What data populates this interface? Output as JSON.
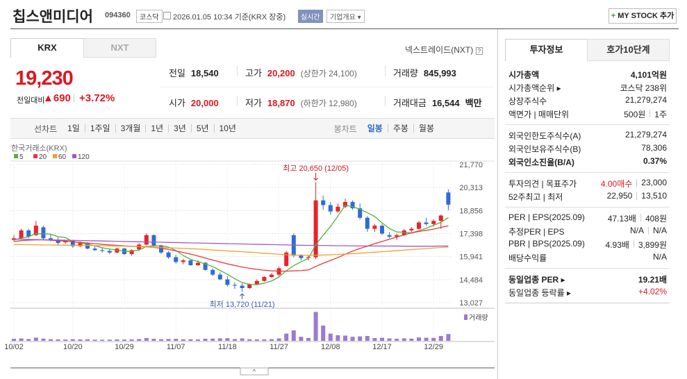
{
  "header": {
    "title": "칩스앤미디어",
    "code": "094360",
    "market": "코스닥",
    "datetime": "2026.01.05 10:34 기준(KRX 장중)",
    "realtime": "실시간",
    "overview": "기업개요",
    "mystock": "MY STOCK 추가"
  },
  "price": {
    "tabs": [
      "KRX",
      "NXT"
    ],
    "nxt_link": "넥스트레이드(NXT)",
    "current": "19,230",
    "change_label": "전일대비",
    "change": "690",
    "change_rate": "+3.72%",
    "stats": [
      {
        "label": "전일",
        "value": "18,540"
      },
      {
        "label": "고가",
        "value": "20,200",
        "note": "(상한가 24,100)"
      },
      {
        "label": "거래량",
        "value": "845,993"
      },
      {
        "label": "시가",
        "value": "20,000"
      },
      {
        "label": "저가",
        "value": "18,870",
        "note": "(하한가 12,980)"
      },
      {
        "label": "거래대금",
        "value": "16,544",
        "note": "백만"
      }
    ]
  },
  "periods": {
    "line_label": "선차트",
    "line": [
      "1일",
      "1주일",
      "3개월",
      "1년",
      "3년",
      "5년",
      "10년"
    ],
    "candle_label": "봉차트",
    "candle": [
      "일봉",
      "주봉",
      "월봉"
    ]
  },
  "chart_data": {
    "type": "candlestick",
    "subtitle": "한국거래소(KRX)",
    "categories": [
      "10/02",
      null,
      null,
      null,
      null,
      null,
      null,
      null,
      "10/20",
      null,
      null,
      null,
      null,
      null,
      null,
      "10/29",
      null,
      null,
      null,
      null,
      null,
      null,
      "11/07",
      null,
      null,
      null,
      null,
      null,
      null,
      "11/18",
      null,
      null,
      null,
      null,
      null,
      null,
      "11/27",
      null,
      null,
      null,
      null,
      null,
      null,
      "12/08",
      null,
      null,
      null,
      null,
      null,
      null,
      "12/17",
      null,
      null,
      null,
      null,
      null,
      null,
      "12/29",
      null,
      null
    ],
    "open": [
      17000,
      17100,
      17600,
      17300,
      17800,
      17100,
      17000,
      16850,
      16950,
      16600,
      16800,
      16450,
      16350,
      16300,
      16200,
      16450,
      16100,
      16400,
      16700,
      17300,
      16650,
      16200,
      15900,
      15600,
      15700,
      15400,
      15550,
      15100,
      14800,
      14500,
      14150,
      14100,
      13950,
      14200,
      14400,
      14650,
      14800,
      15350,
      17300,
      16000,
      15850,
      15900,
      19500,
      19200,
      18800,
      19100,
      19400,
      19000,
      18400,
      17700,
      17900,
      17300,
      17200,
      17300,
      17600,
      17700,
      18100,
      18000,
      18200,
      20000
    ],
    "high": [
      17300,
      17700,
      17700,
      18200,
      17900,
      17400,
      17150,
      17000,
      17000,
      16900,
      16850,
      16600,
      16500,
      16450,
      16500,
      16500,
      16400,
      16800,
      17400,
      17350,
      16700,
      16300,
      16050,
      15800,
      15750,
      15700,
      15600,
      15200,
      14950,
      14700,
      14300,
      14250,
      14250,
      14500,
      14700,
      14900,
      15300,
      16300,
      17400,
      16100,
      16000,
      20650,
      19800,
      19400,
      19300,
      19600,
      19500,
      19300,
      18500,
      18000,
      18000,
      17500,
      17400,
      17700,
      17800,
      18200,
      18400,
      18300,
      18600,
      20200
    ],
    "low": [
      16900,
      17050,
      17100,
      17250,
      17000,
      16900,
      16700,
      16750,
      16500,
      16550,
      16400,
      16300,
      16200,
      16100,
      16150,
      16050,
      16000,
      16300,
      16650,
      16600,
      16100,
      15800,
      15500,
      15450,
      15350,
      15350,
      15050,
      14700,
      14450,
      14050,
      13900,
      13720,
      13900,
      14150,
      14350,
      14600,
      14700,
      15300,
      15900,
      15700,
      15700,
      15800,
      18900,
      18600,
      18700,
      19000,
      18900,
      18300,
      17500,
      17500,
      17300,
      17100,
      17000,
      17250,
      17500,
      17650,
      17900,
      17850,
      17700,
      18870
    ],
    "close": [
      17100,
      17600,
      17200,
      17900,
      17100,
      17000,
      16800,
      16950,
      16600,
      16800,
      16450,
      16350,
      16300,
      16200,
      16450,
      16100,
      16350,
      16700,
      17300,
      16650,
      16200,
      15900,
      15600,
      15700,
      15400,
      15550,
      15100,
      14800,
      14500,
      14150,
      14100,
      13950,
      14200,
      14400,
      14650,
      14800,
      15200,
      16200,
      16000,
      15850,
      15900,
      19500,
      19200,
      18800,
      19100,
      19400,
      19000,
      18400,
      17700,
      17900,
      17400,
      17200,
      17300,
      17600,
      17700,
      18100,
      18000,
      18200,
      18540,
      19230
    ],
    "up_color": "#e8222b",
    "down_color": "#2f6bd6",
    "ma": [
      {
        "name": "5",
        "color": "#4fb33a",
        "values": [
          17000,
          17100,
          17200,
          17400,
          17380,
          17360,
          17200,
          17150,
          16890,
          16830,
          16720,
          16630,
          16500,
          16420,
          16350,
          16280,
          16280,
          16360,
          16580,
          16620,
          16640,
          16550,
          16330,
          16010,
          15760,
          15630,
          15470,
          15310,
          15070,
          14820,
          14540,
          14300,
          14180,
          14160,
          14260,
          14400,
          14650,
          15050,
          15370,
          15610,
          15830,
          16690,
          17290,
          17850,
          18500,
          19200,
          19100,
          18940,
          18720,
          18480,
          18080,
          17720,
          17500,
          17480,
          17440,
          17580,
          17740,
          17920,
          18110,
          18410
        ]
      },
      {
        "name": "20",
        "color": "#e8393a",
        "values": [
          16900,
          16950,
          16980,
          17000,
          17000,
          16980,
          16950,
          16920,
          16880,
          16850,
          16800,
          16760,
          16720,
          16680,
          16650,
          16620,
          16600,
          16580,
          16560,
          16520,
          16470,
          16400,
          16300,
          16200,
          16100,
          15980,
          15850,
          15720,
          15600,
          15480,
          15380,
          15280,
          15200,
          15130,
          15080,
          15040,
          15020,
          15020,
          15040,
          15060,
          15100,
          15320,
          15520,
          15700,
          15880,
          16090,
          16290,
          16460,
          16600,
          16760,
          16900,
          17040,
          17180,
          17320,
          17440,
          17530,
          17610,
          17680,
          17790,
          17900
        ]
      },
      {
        "name": "60",
        "color": "#f0a030",
        "values": [
          16700,
          16700,
          16690,
          16690,
          16680,
          16680,
          16670,
          16660,
          16660,
          16650,
          16650,
          16640,
          16630,
          16620,
          16610,
          16600,
          16590,
          16570,
          16550,
          16540,
          16520,
          16500,
          16480,
          16460,
          16440,
          16420,
          16390,
          16360,
          16330,
          16300,
          16280,
          16250,
          16220,
          16190,
          16150,
          16120,
          16090,
          16060,
          16040,
          16030,
          16020,
          16030,
          16040,
          16060,
          16080,
          16100,
          16130,
          16160,
          16190,
          16220,
          16250,
          16280,
          16320,
          16350,
          16390,
          16420,
          16450,
          16480,
          16520,
          16550
        ]
      },
      {
        "name": "120",
        "color": "#a05ac8",
        "values": [
          17050,
          17040,
          17030,
          17020,
          17010,
          17000,
          16990,
          16980,
          16970,
          16960,
          16950,
          16940,
          16930,
          16920,
          16910,
          16900,
          16890,
          16880,
          16870,
          16860,
          16850,
          16840,
          16830,
          16820,
          16810,
          16800,
          16790,
          16780,
          16770,
          16760,
          16750,
          16740,
          16730,
          16720,
          16710,
          16700,
          16690,
          16680,
          16670,
          16660,
          16650,
          16650,
          16640,
          16640,
          16630,
          16630,
          16620,
          16620,
          16620,
          16610,
          16610,
          16610,
          16610,
          16600,
          16600,
          16600,
          16600,
          16600,
          16610,
          16610
        ]
      }
    ],
    "volume": {
      "name": "거래량",
      "color": "#9a7bd0",
      "lim": [
        0,
        3800000
      ],
      "values": [
        250000,
        300000,
        220000,
        400000,
        280000,
        200000,
        180000,
        160000,
        200000,
        170000,
        190000,
        150000,
        140000,
        150000,
        170000,
        160000,
        180000,
        220000,
        350000,
        250000,
        200000,
        230000,
        250000,
        180000,
        200000,
        170000,
        260000,
        280000,
        300000,
        330000,
        220000,
        300000,
        200000,
        180000,
        190000,
        210000,
        300000,
        900000,
        1300000,
        500000,
        350000,
        3600000,
        1900000,
        900000,
        700000,
        650000,
        500000,
        550000,
        600000,
        350000,
        380000,
        300000,
        250000,
        300000,
        280000,
        420000,
        380000,
        360000,
        600000,
        845993
      ]
    },
    "ylim": [
      13027,
      21770
    ],
    "yticks": [
      {
        "value": 13027,
        "label": "13,027"
      },
      {
        "value": 14484,
        "label": "14,484"
      },
      {
        "value": 15941,
        "label": "15,941"
      },
      {
        "value": 17398,
        "label": "17,398"
      },
      {
        "value": 18856,
        "label": "18,856"
      },
      {
        "value": 20313,
        "label": "20,313"
      },
      {
        "value": 21770,
        "label": "21,770"
      }
    ],
    "annotations": {
      "high": "최고 20,650 (12/05)",
      "low": "최저 13,720 (11/21)"
    }
  },
  "info": {
    "tabs": [
      "투자정보",
      "호가10단계"
    ],
    "groups": [
      [
        {
          "label": "시가총액",
          "values": [
            "4,101억원"
          ]
        },
        {
          "label": "시가총액순위 ▸",
          "values": [
            "코스닥 238위"
          ]
        },
        {
          "label": "상장주식수",
          "values": [
            "21,279,274"
          ]
        },
        {
          "label": "액면가 | 매매단위",
          "values": [
            "500원",
            "1주"
          ]
        }
      ],
      [
        {
          "label": "외국인한도주식수(A)",
          "values": [
            "21,279,274"
          ]
        },
        {
          "label": "외국인보유주식수(B)",
          "values": [
            "78,306"
          ]
        },
        {
          "label": "외국인소진율(B/A)",
          "values": [
            "0.37%"
          ]
        }
      ],
      [
        {
          "label": "투자의견 | 목표주가",
          "values": [
            "4.00매수",
            "23,000"
          ]
        },
        {
          "label": "52주최고 | 최저",
          "values": [
            "22,950",
            "13,510"
          ]
        }
      ],
      [
        {
          "label": "PER | EPS(2025.09)",
          "values": [
            "47.13배",
            "408원"
          ]
        },
        {
          "label": "추정PER | EPS",
          "values": [
            "N/A",
            "N/A"
          ]
        },
        {
          "label": "PBR | BPS(2025.09)",
          "values": [
            "4.93배",
            "3,899원"
          ]
        },
        {
          "label": "배당수익률",
          "values": [
            "N/A"
          ]
        }
      ],
      [
        {
          "label": "동일업종 PER ▸",
          "values": [
            "19.21배"
          ]
        },
        {
          "label": "동일업종 등락률 ▸",
          "values": [
            "+4.02%"
          ]
        }
      ]
    ]
  }
}
